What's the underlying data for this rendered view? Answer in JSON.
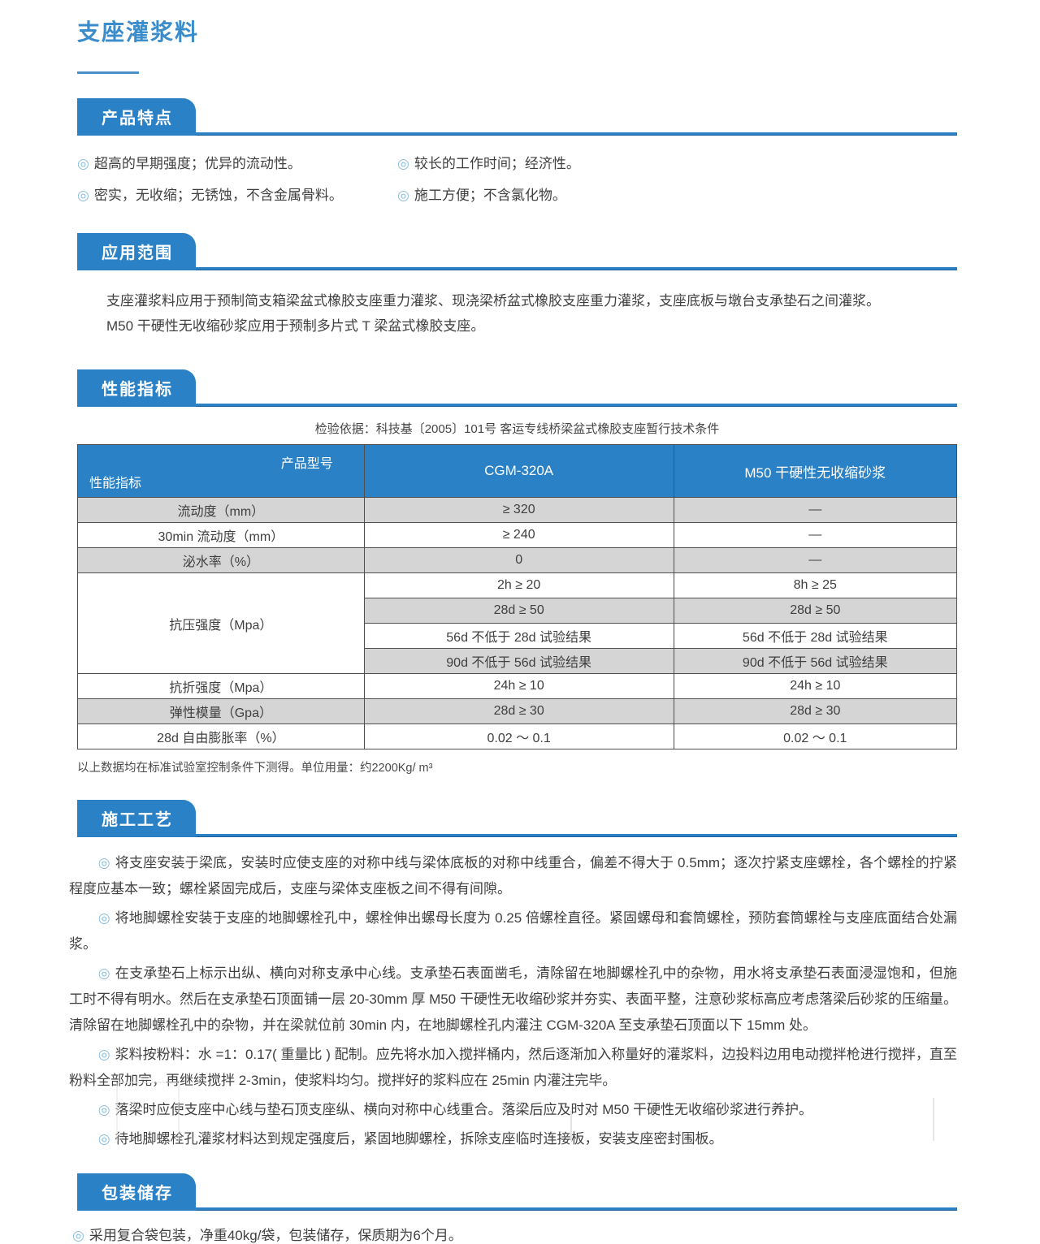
{
  "page": {
    "title": "支座灌浆料"
  },
  "features": {
    "heading": "产品特点",
    "items": [
      "超高的早期强度；优异的流动性。",
      "较长的工作时间；经济性。",
      "密实，无收缩；无锈蚀，不含金属骨料。",
      "施工方便；不含氯化物。"
    ]
  },
  "application": {
    "heading": "应用范围",
    "lines": [
      "支座灌浆料应用于预制简支箱梁盆式橡胶支座重力灌浆、现浇梁桥盆式橡胶支座重力灌浆，支座底板与墩台支承垫石之间灌浆。",
      "M50 干硬性无收缩砂浆应用于预制多片式 T 梁盆式橡胶支座。"
    ]
  },
  "performance": {
    "heading": "性能指标",
    "basis": "检验依据：科技基〔2005〕101号 客运专线桥梁盆式橡胶支座暂行技术条件",
    "table": {
      "corner_top": "产品型号",
      "corner_bottom": "性能指标",
      "columns": [
        "CGM-320A",
        "M50 干硬性无收缩砂浆"
      ],
      "merged_label": "抗压强度（Mpa）",
      "rows": [
        {
          "label": "流动度（mm）",
          "cgm": "≥ 320",
          "m50": "—"
        },
        {
          "label": "30min 流动度（mm）",
          "cgm": "≥ 240",
          "m50": "—"
        },
        {
          "label": "泌水率（%）",
          "cgm": "0",
          "m50": "—"
        },
        {
          "cgm": "2h ≥ 20",
          "m50": "8h ≥ 25"
        },
        {
          "cgm": "28d ≥ 50",
          "m50": "28d ≥ 50"
        },
        {
          "cgm": "56d 不低于 28d 试验结果",
          "m50": "56d 不低于 28d 试验结果"
        },
        {
          "cgm": "90d 不低于 56d 试验结果",
          "m50": "90d 不低于 56d 试验结果"
        },
        {
          "label": "抗折强度（Mpa）",
          "cgm": "24h ≥ 10",
          "m50": "24h ≥ 10"
        },
        {
          "label": "弹性模量（Gpa）",
          "cgm": "28d ≥ 30",
          "m50": "28d ≥ 30"
        },
        {
          "label": "28d 自由膨胀率（%）",
          "cgm": "0.02 ～ 0.1",
          "m50": "0.02 ～ 0.1"
        }
      ]
    },
    "footnote": "以上数据均在标准试验室控制条件下测得。单位用量：约2200Kg/ m³"
  },
  "process": {
    "heading": "施工工艺",
    "items": [
      "将支座安装于梁底，安装时应使支座的对称中线与梁体底板的对称中线重合，偏差不得大于 0.5mm；逐次拧紧支座螺栓，各个螺栓的拧紧程度应基本一致；螺栓紧固完成后，支座与梁体支座板之间不得有间隙。",
      "将地脚螺栓安装于支座的地脚螺栓孔中，螺栓伸出螺母长度为 0.25 倍螺栓直径。紧固螺母和套筒螺栓，预防套筒螺栓与支座底面结合处漏浆。",
      "在支承垫石上标示出纵、横向对称支承中心线。支承垫石表面凿毛，清除留在地脚螺栓孔中的杂物，用水将支承垫石表面浸湿饱和，但施工时不得有明水。然后在支承垫石顶面铺一层 20-30mm 厚 M50 干硬性无收缩砂浆并夯实、表面平整，注意砂浆标高应考虑落梁后砂浆的压缩量。清除留在地脚螺栓孔中的杂物，并在梁就位前 30min 内，在地脚螺栓孔内灌注 CGM-320A 至支承垫石顶面以下 15mm 处。",
      "浆料按粉料：水 =1：0.17( 重量比 ) 配制。应先将水加入搅拌桶内，然后逐渐加入称量好的灌浆料，边投料边用电动搅拌枪进行搅拌，直至粉料全部加完，再继续搅拌 2-3min，使浆料均匀。搅拌好的浆料应在 25min 内灌注完毕。",
      "落梁时应使支座中心线与垫石顶支座纵、横向对称中心线重合。落梁后应及时对 M50 干硬性无收缩砂浆进行养护。",
      "待地脚螺栓孔灌浆材料达到规定强度后，紧固地脚螺栓，拆除支座临时连接板，安装支座密封围板。"
    ]
  },
  "packaging": {
    "heading": "包装储存",
    "items": [
      "采用复合袋包装，净重40kg/袋，包装储存，保质期为6个月。"
    ]
  },
  "icons": {
    "bullet": "◎"
  },
  "colors": {
    "primary": "#2b81c5",
    "title_blue": "#3a8ccb",
    "row_gray": "#d5d5d5",
    "bullet_blue": "#8abddc",
    "text": "#3f3f3f"
  }
}
